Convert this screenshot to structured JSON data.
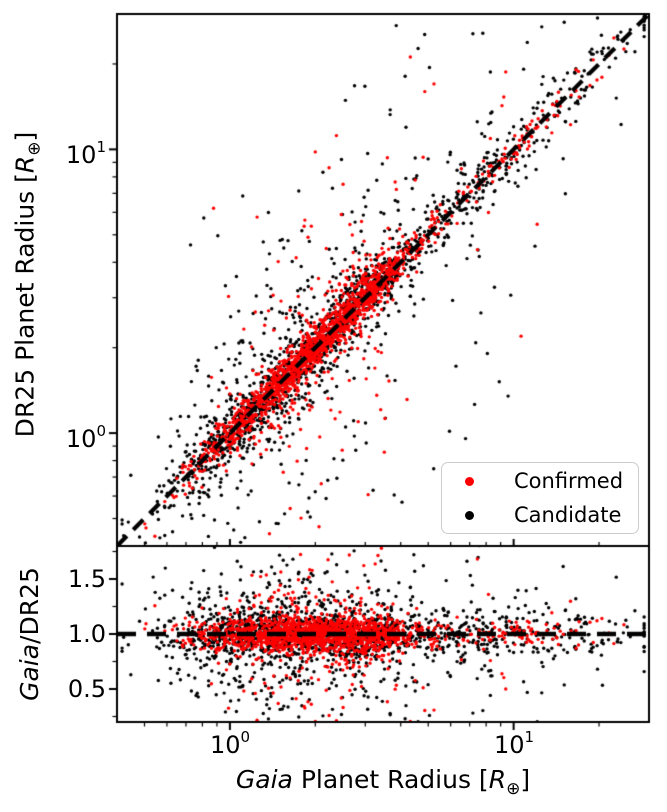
{
  "figure": {
    "background": "#ffffff"
  },
  "chart_data": {
    "type": "scatter",
    "title": "",
    "legend": {
      "position": "lower-right-of-top-panel",
      "entries": [
        {
          "label": "Confirmed",
          "color": "#ff0000"
        },
        {
          "label": "Candidate",
          "color": "#000000"
        }
      ]
    },
    "panels": [
      {
        "id": "top",
        "xscale": "log",
        "yscale": "log",
        "xlim": [
          0.4,
          30
        ],
        "ylim": [
          0.4,
          30
        ],
        "ylabel_parts": {
          "prefix": "DR25 Planet Radius [",
          "symbol": "R",
          "subscript": "⊕",
          "suffix": "]"
        },
        "yticks": [
          {
            "value": 1,
            "base": "10",
            "exp": "0"
          },
          {
            "value": 10,
            "base": "10",
            "exp": "1"
          }
        ],
        "yminor": [
          0.5,
          0.6,
          0.7,
          0.8,
          0.9,
          2,
          3,
          4,
          5,
          6,
          7,
          8,
          9,
          20
        ],
        "xticks_values": [
          1,
          10
        ],
        "xminor": [
          0.5,
          0.6,
          0.7,
          0.8,
          0.9,
          2,
          3,
          4,
          5,
          6,
          7,
          8,
          9,
          20
        ],
        "ref_line": {
          "type": "identity",
          "style": "dashed",
          "color": "#000000",
          "width": 4.2,
          "dash": [
            14,
            9
          ]
        },
        "grid": false
      },
      {
        "id": "bottom",
        "xscale": "log",
        "yscale": "linear",
        "xlim": [
          0.4,
          30
        ],
        "ylim": [
          0.2,
          1.8
        ],
        "ylabel_parts": {
          "italic": "Gaia",
          "rest": "/DR25"
        },
        "yticks": [
          {
            "value": 1.5,
            "label": "1.5"
          },
          {
            "value": 1.0,
            "label": "1.0"
          },
          {
            "value": 0.5,
            "label": "0.5"
          }
        ],
        "yminor": [
          0.25,
          0.75,
          1.25,
          1.75
        ],
        "xticks": [
          {
            "value": 1,
            "base": "10",
            "exp": "0"
          },
          {
            "value": 10,
            "base": "10",
            "exp": "1"
          }
        ],
        "xminor": [
          0.5,
          0.6,
          0.7,
          0.8,
          0.9,
          2,
          3,
          4,
          5,
          6,
          7,
          8,
          9,
          20
        ],
        "xlabel_parts": {
          "italic": "Gaia",
          "mid": " Planet Radius [",
          "symbol": "R",
          "subscript": "⊕",
          "suffix": "]"
        },
        "ref_line": {
          "type": "hline",
          "y": 1.0,
          "style": "dashed",
          "color": "#000000",
          "width": 4.6,
          "dash": [
            19,
            11
          ]
        },
        "grid": false
      }
    ],
    "series": [
      {
        "name": "Candidate",
        "color": "#000000",
        "marker_px": 3.4,
        "n": 1800,
        "seed": 7,
        "x_log10_mixture": [
          {
            "w": 0.62,
            "mu": 0.3,
            "sigma": 0.22
          },
          {
            "w": 0.16,
            "mu": -0.02,
            "sigma": 0.13
          },
          {
            "w": 0.22,
            "mu": 0.85,
            "sigma": 0.3
          }
        ],
        "x_log10_clamp": [
          -0.38,
          1.46
        ],
        "ratio_mixture": [
          {
            "w": 0.55,
            "type": "linear",
            "mu": 1.0,
            "sigma": 0.1
          },
          {
            "w": 0.3,
            "type": "linear",
            "mu": 1.0,
            "sigma": 0.28
          },
          {
            "w": 0.15,
            "type": "dex",
            "mu": 0,
            "sigma": 0.45
          }
        ]
      },
      {
        "name": "Confirmed",
        "color": "#ff0000",
        "marker_px": 3.4,
        "n": 1700,
        "seed": 11,
        "x_log10_mixture": [
          {
            "w": 0.8,
            "mu": 0.34,
            "sigma": 0.17
          },
          {
            "w": 0.12,
            "mu": 0.05,
            "sigma": 0.12
          },
          {
            "w": 0.08,
            "mu": 0.95,
            "sigma": 0.18
          }
        ],
        "x_log10_clamp": [
          -0.3,
          1.45
        ],
        "ratio_mixture": [
          {
            "w": 0.7,
            "type": "linear",
            "mu": 1.0,
            "sigma": 0.07
          },
          {
            "w": 0.22,
            "type": "linear",
            "mu": 1.0,
            "sigma": 0.18
          },
          {
            "w": 0.08,
            "type": "dex",
            "mu": 0,
            "sigma": 0.35
          }
        ]
      }
    ],
    "axes_style": {
      "tick_direction": "out",
      "spine_color": "#000000",
      "spine_width": 2
    }
  }
}
